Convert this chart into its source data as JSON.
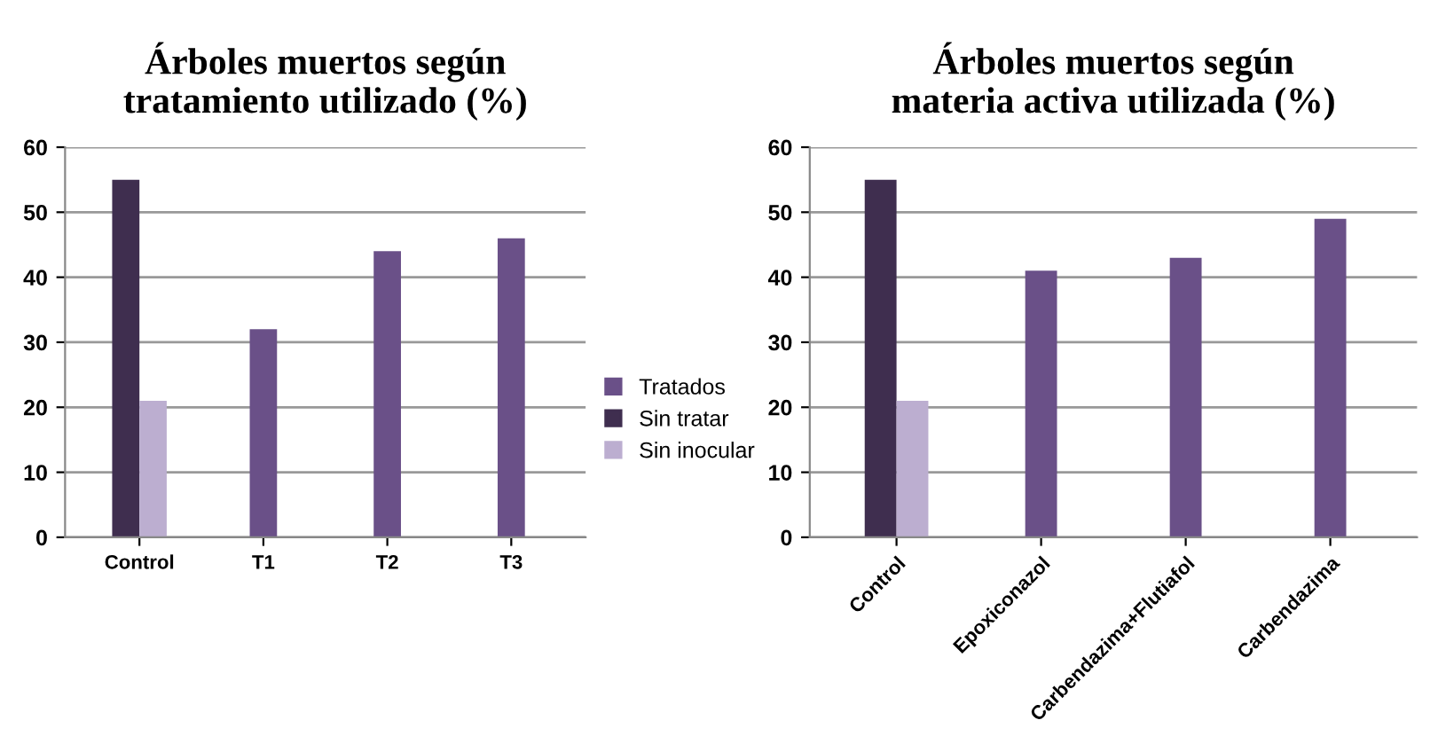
{
  "chart_data": [
    {
      "type": "bar",
      "title": "Árboles muertos según\ntratamiento utilizado (%)",
      "categories": [
        "Control",
        "T1",
        "T2",
        "T3"
      ],
      "series": [
        {
          "name": "Tratados",
          "color": "#6a5088",
          "values": [
            null,
            32,
            44,
            46
          ]
        },
        {
          "name": "Sin tratar",
          "color": "#3f2e4f",
          "values": [
            55,
            null,
            null,
            null
          ]
        },
        {
          "name": "Sin inocular",
          "color": "#bcaed0",
          "values": [
            21,
            null,
            null,
            null
          ]
        }
      ],
      "ylim": [
        0,
        60
      ],
      "yticks": [
        0,
        10,
        20,
        30,
        40,
        50,
        60
      ],
      "grid": "y",
      "legend": "right"
    },
    {
      "type": "bar",
      "title": "Árboles muertos según\nmateria activa utilizada (%)",
      "categories": [
        "Control",
        "Epoxiconazol",
        "Carbendazima+Flutiafol",
        "Carbendazima"
      ],
      "series": [
        {
          "color": "#6a5088",
          "values": [
            null,
            41,
            43,
            49
          ]
        },
        {
          "color": "#3f2e4f",
          "values": [
            55,
            null,
            null,
            null
          ]
        },
        {
          "color": "#bcaed0",
          "values": [
            21,
            null,
            null,
            null
          ]
        }
      ],
      "ylim": [
        0,
        60
      ],
      "yticks": [
        0,
        10,
        20,
        30,
        40,
        50,
        60
      ],
      "grid": "y"
    }
  ]
}
